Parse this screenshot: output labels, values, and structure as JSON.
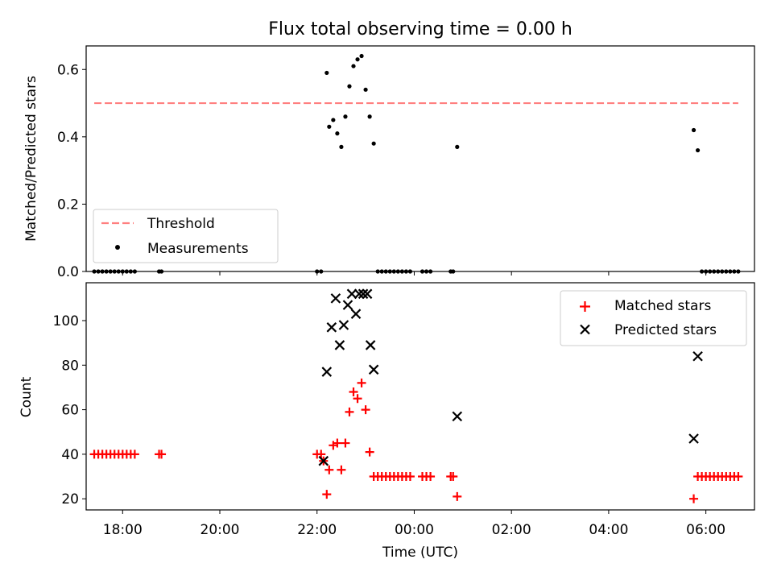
{
  "title": "Flux total observing time = 0.00 h",
  "chart_data": [
    {
      "type": "scatter",
      "panel": "top",
      "ylabel": "Matched/Predicted stars",
      "xlabel": "",
      "xlim": [
        "17:15",
        "07:00"
      ],
      "ylim": [
        0,
        0.67
      ],
      "yticks": [
        0.0,
        0.2,
        0.4,
        0.6
      ],
      "ytick_labels": [
        "0.0",
        "0.2",
        "0.4",
        "0.6"
      ],
      "legend_position": "lower-left",
      "threshold": {
        "name": "Threshold",
        "value": 0.5,
        "x_start": "17:25",
        "x_end": "06:40",
        "color": "#ff7f7f"
      },
      "series": [
        {
          "name": "Measurements",
          "color": "#000000",
          "points": [
            [
              "17:25",
              0.0
            ],
            [
              "17:30",
              0.0
            ],
            [
              "17:35",
              0.0
            ],
            [
              "17:40",
              0.0
            ],
            [
              "17:45",
              0.0
            ],
            [
              "17:50",
              0.0
            ],
            [
              "17:55",
              0.0
            ],
            [
              "18:00",
              0.0
            ],
            [
              "18:05",
              0.0
            ],
            [
              "18:10",
              0.0
            ],
            [
              "18:15",
              0.0
            ],
            [
              "18:45",
              0.0
            ],
            [
              "18:48",
              0.0
            ],
            [
              "22:00",
              0.0
            ],
            [
              "22:05",
              0.0
            ],
            [
              "22:12",
              0.59
            ],
            [
              "22:15",
              0.43
            ],
            [
              "22:20",
              0.45
            ],
            [
              "22:25",
              0.41
            ],
            [
              "22:30",
              0.37
            ],
            [
              "22:35",
              0.46
            ],
            [
              "22:40",
              0.55
            ],
            [
              "22:45",
              0.61
            ],
            [
              "22:50",
              0.63
            ],
            [
              "22:55",
              0.64
            ],
            [
              "23:00",
              0.54
            ],
            [
              "23:05",
              0.46
            ],
            [
              "23:10",
              0.38
            ],
            [
              "23:15",
              0.0
            ],
            [
              "23:20",
              0.0
            ],
            [
              "23:25",
              0.0
            ],
            [
              "23:30",
              0.0
            ],
            [
              "23:35",
              0.0
            ],
            [
              "23:40",
              0.0
            ],
            [
              "23:45",
              0.0
            ],
            [
              "23:50",
              0.0
            ],
            [
              "23:55",
              0.0
            ],
            [
              "00:10",
              0.0
            ],
            [
              "00:15",
              0.0
            ],
            [
              "00:20",
              0.0
            ],
            [
              "00:45",
              0.0
            ],
            [
              "00:48",
              0.0
            ],
            [
              "00:53",
              0.37
            ],
            [
              "05:45",
              0.42
            ],
            [
              "05:50",
              0.36
            ],
            [
              "05:55",
              0.0
            ],
            [
              "06:00",
              0.0
            ],
            [
              "06:05",
              0.0
            ],
            [
              "06:10",
              0.0
            ],
            [
              "06:15",
              0.0
            ],
            [
              "06:20",
              0.0
            ],
            [
              "06:25",
              0.0
            ],
            [
              "06:30",
              0.0
            ],
            [
              "06:35",
              0.0
            ],
            [
              "06:40",
              0.0
            ]
          ]
        }
      ]
    },
    {
      "type": "scatter",
      "panel": "bottom",
      "ylabel": "Count",
      "xlabel": "Time (UTC)",
      "xlim": [
        "17:15",
        "07:00"
      ],
      "ylim": [
        15,
        117
      ],
      "yticks": [
        20,
        40,
        60,
        80,
        100
      ],
      "ytick_labels": [
        "20",
        "40",
        "60",
        "80",
        "100"
      ],
      "xticks": [
        "18:00",
        "20:00",
        "22:00",
        "00:00",
        "02:00",
        "04:00",
        "06:00"
      ],
      "legend_position": "upper-right",
      "series": [
        {
          "name": "Matched stars",
          "marker": "plus",
          "color": "#ff0000",
          "points": [
            [
              "17:25",
              40
            ],
            [
              "17:30",
              40
            ],
            [
              "17:35",
              40
            ],
            [
              "17:40",
              40
            ],
            [
              "17:45",
              40
            ],
            [
              "17:50",
              40
            ],
            [
              "17:55",
              40
            ],
            [
              "18:00",
              40
            ],
            [
              "18:05",
              40
            ],
            [
              "18:10",
              40
            ],
            [
              "18:15",
              40
            ],
            [
              "18:45",
              40
            ],
            [
              "18:48",
              40
            ],
            [
              "22:00",
              40
            ],
            [
              "22:05",
              40
            ],
            [
              "22:08",
              37
            ],
            [
              "22:12",
              22
            ],
            [
              "22:15",
              33
            ],
            [
              "22:20",
              44
            ],
            [
              "22:25",
              45
            ],
            [
              "22:30",
              33
            ],
            [
              "22:35",
              45
            ],
            [
              "22:40",
              59
            ],
            [
              "22:45",
              68
            ],
            [
              "22:50",
              65
            ],
            [
              "22:55",
              72
            ],
            [
              "23:00",
              60
            ],
            [
              "23:05",
              41
            ],
            [
              "23:10",
              30
            ],
            [
              "23:15",
              30
            ],
            [
              "23:20",
              30
            ],
            [
              "23:25",
              30
            ],
            [
              "23:30",
              30
            ],
            [
              "23:35",
              30
            ],
            [
              "23:40",
              30
            ],
            [
              "23:45",
              30
            ],
            [
              "23:50",
              30
            ],
            [
              "23:55",
              30
            ],
            [
              "00:10",
              30
            ],
            [
              "00:15",
              30
            ],
            [
              "00:20",
              30
            ],
            [
              "00:45",
              30
            ],
            [
              "00:48",
              30
            ],
            [
              "00:53",
              21
            ],
            [
              "05:45",
              20
            ],
            [
              "05:50",
              30
            ],
            [
              "05:55",
              30
            ],
            [
              "06:00",
              30
            ],
            [
              "06:05",
              30
            ],
            [
              "06:10",
              30
            ],
            [
              "06:15",
              30
            ],
            [
              "06:20",
              30
            ],
            [
              "06:25",
              30
            ],
            [
              "06:30",
              30
            ],
            [
              "06:35",
              30
            ],
            [
              "06:40",
              30
            ]
          ]
        },
        {
          "name": "Predicted stars",
          "marker": "x",
          "color": "#000000",
          "points": [
            [
              "22:08",
              37
            ],
            [
              "22:12",
              77
            ],
            [
              "22:18",
              97
            ],
            [
              "22:23",
              110
            ],
            [
              "22:28",
              89
            ],
            [
              "22:33",
              98
            ],
            [
              "22:38",
              107
            ],
            [
              "22:43",
              112
            ],
            [
              "22:48",
              103
            ],
            [
              "22:52",
              112
            ],
            [
              "22:57",
              112
            ],
            [
              "23:02",
              112
            ],
            [
              "23:06",
              89
            ],
            [
              "23:10",
              78
            ],
            [
              "00:53",
              57
            ],
            [
              "05:45",
              47
            ],
            [
              "05:50",
              84
            ]
          ]
        }
      ]
    }
  ]
}
